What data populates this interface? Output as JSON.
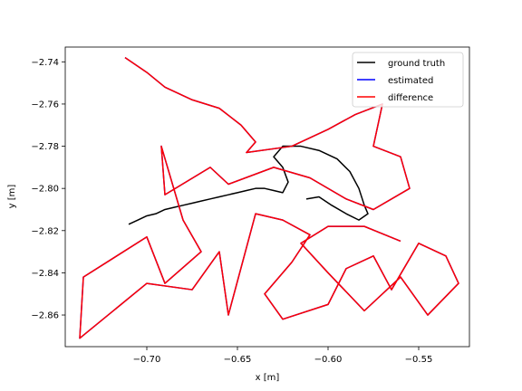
{
  "chart_data": {
    "type": "line",
    "xlabel": "x [m]",
    "ylabel": "y [m]",
    "xlim": [
      -0.745,
      -0.522
    ],
    "ylim": [
      -2.875,
      -2.733
    ],
    "x_ticks": [
      -0.7,
      -0.65,
      -0.6,
      -0.55
    ],
    "x_tick_labels": [
      "−0.70",
      "−0.65",
      "−0.60",
      "−0.55"
    ],
    "y_ticks": [
      -2.74,
      -2.76,
      -2.78,
      -2.8,
      -2.82,
      -2.84,
      -2.86
    ],
    "y_tick_labels": [
      "−2.74",
      "−2.76",
      "−2.78",
      "−2.80",
      "−2.82",
      "−2.84",
      "−2.86"
    ],
    "grid": false,
    "legend_position": "upper right",
    "series": [
      {
        "name": "ground truth",
        "color": "#000000",
        "points": [
          [
            -0.71,
            -2.817
          ],
          [
            -0.705,
            -2.815
          ],
          [
            -0.7,
            -2.813
          ],
          [
            -0.695,
            -2.812
          ],
          [
            -0.69,
            -2.81
          ],
          [
            -0.685,
            -2.809
          ],
          [
            -0.68,
            -2.808
          ],
          [
            -0.675,
            -2.807
          ],
          [
            -0.67,
            -2.806
          ],
          [
            -0.665,
            -2.805
          ],
          [
            -0.66,
            -2.804
          ],
          [
            -0.655,
            -2.803
          ],
          [
            -0.65,
            -2.802
          ],
          [
            -0.645,
            -2.801
          ],
          [
            -0.64,
            -2.8
          ],
          [
            -0.635,
            -2.8
          ],
          [
            -0.63,
            -2.801
          ],
          [
            -0.625,
            -2.802
          ],
          [
            -0.622,
            -2.797
          ],
          [
            -0.625,
            -2.79
          ],
          [
            -0.63,
            -2.785
          ],
          [
            -0.625,
            -2.78
          ],
          [
            -0.615,
            -2.78
          ],
          [
            -0.605,
            -2.782
          ],
          [
            -0.595,
            -2.786
          ],
          [
            -0.588,
            -2.792
          ],
          [
            -0.583,
            -2.8
          ],
          [
            -0.58,
            -2.808
          ],
          [
            -0.578,
            -2.812
          ],
          [
            -0.583,
            -2.815
          ],
          [
            -0.59,
            -2.812
          ],
          [
            -0.598,
            -2.808
          ],
          [
            -0.605,
            -2.804
          ],
          [
            -0.612,
            -2.805
          ]
        ]
      },
      {
        "name": "estimated",
        "color": "#0000ff",
        "points": [
          [
            -0.712,
            -2.738
          ],
          [
            -0.7,
            -2.745
          ],
          [
            -0.69,
            -2.752
          ],
          [
            -0.675,
            -2.758
          ],
          [
            -0.66,
            -2.762
          ],
          [
            -0.648,
            -2.77
          ],
          [
            -0.64,
            -2.778
          ],
          [
            -0.645,
            -2.783
          ],
          [
            -0.62,
            -2.78
          ],
          [
            -0.6,
            -2.772
          ],
          [
            -0.585,
            -2.765
          ],
          [
            -0.57,
            -2.76
          ],
          [
            -0.575,
            -2.78
          ],
          [
            -0.56,
            -2.785
          ],
          [
            -0.555,
            -2.8
          ],
          [
            -0.575,
            -2.81
          ],
          [
            -0.59,
            -2.805
          ],
          [
            -0.61,
            -2.795
          ],
          [
            -0.63,
            -2.79
          ],
          [
            -0.655,
            -2.798
          ],
          [
            -0.665,
            -2.79
          ],
          [
            -0.69,
            -2.803
          ],
          [
            -0.692,
            -2.78
          ],
          [
            -0.68,
            -2.815
          ],
          [
            -0.67,
            -2.83
          ],
          [
            -0.69,
            -2.845
          ],
          [
            -0.7,
            -2.823
          ],
          [
            -0.735,
            -2.842
          ],
          [
            -0.737,
            -2.871
          ],
          [
            -0.7,
            -2.845
          ],
          [
            -0.675,
            -2.848
          ],
          [
            -0.66,
            -2.83
          ],
          [
            -0.655,
            -2.86
          ],
          [
            -0.64,
            -2.812
          ],
          [
            -0.625,
            -2.815
          ],
          [
            -0.61,
            -2.822
          ],
          [
            -0.62,
            -2.835
          ],
          [
            -0.635,
            -2.85
          ],
          [
            -0.625,
            -2.862
          ],
          [
            -0.6,
            -2.855
          ],
          [
            -0.59,
            -2.838
          ],
          [
            -0.575,
            -2.832
          ],
          [
            -0.565,
            -2.848
          ],
          [
            -0.55,
            -2.826
          ],
          [
            -0.535,
            -2.832
          ],
          [
            -0.528,
            -2.845
          ],
          [
            -0.545,
            -2.86
          ],
          [
            -0.56,
            -2.842
          ],
          [
            -0.58,
            -2.858
          ],
          [
            -0.6,
            -2.84
          ],
          [
            -0.615,
            -2.826
          ],
          [
            -0.6,
            -2.818
          ],
          [
            -0.58,
            -2.818
          ],
          [
            -0.56,
            -2.825
          ]
        ]
      },
      {
        "name": "difference",
        "color": "#ff0000",
        "points": [
          [
            -0.712,
            -2.738
          ],
          [
            -0.7,
            -2.745
          ],
          [
            -0.69,
            -2.752
          ],
          [
            -0.675,
            -2.758
          ],
          [
            -0.66,
            -2.762
          ],
          [
            -0.648,
            -2.77
          ],
          [
            -0.64,
            -2.778
          ],
          [
            -0.645,
            -2.783
          ],
          [
            -0.62,
            -2.78
          ],
          [
            -0.6,
            -2.772
          ],
          [
            -0.585,
            -2.765
          ],
          [
            -0.57,
            -2.76
          ],
          [
            -0.575,
            -2.78
          ],
          [
            -0.56,
            -2.785
          ],
          [
            -0.555,
            -2.8
          ],
          [
            -0.575,
            -2.81
          ],
          [
            -0.59,
            -2.805
          ],
          [
            -0.61,
            -2.795
          ],
          [
            -0.63,
            -2.79
          ],
          [
            -0.655,
            -2.798
          ],
          [
            -0.665,
            -2.79
          ],
          [
            -0.69,
            -2.803
          ],
          [
            -0.692,
            -2.78
          ],
          [
            -0.68,
            -2.815
          ],
          [
            -0.67,
            -2.83
          ],
          [
            -0.69,
            -2.845
          ],
          [
            -0.7,
            -2.823
          ],
          [
            -0.735,
            -2.842
          ],
          [
            -0.737,
            -2.871
          ],
          [
            -0.7,
            -2.845
          ],
          [
            -0.675,
            -2.848
          ],
          [
            -0.66,
            -2.83
          ],
          [
            -0.655,
            -2.86
          ],
          [
            -0.64,
            -2.812
          ],
          [
            -0.625,
            -2.815
          ],
          [
            -0.61,
            -2.822
          ],
          [
            -0.62,
            -2.835
          ],
          [
            -0.635,
            -2.85
          ],
          [
            -0.625,
            -2.862
          ],
          [
            -0.6,
            -2.855
          ],
          [
            -0.59,
            -2.838
          ],
          [
            -0.575,
            -2.832
          ],
          [
            -0.565,
            -2.848
          ],
          [
            -0.55,
            -2.826
          ],
          [
            -0.535,
            -2.832
          ],
          [
            -0.528,
            -2.845
          ],
          [
            -0.545,
            -2.86
          ],
          [
            -0.56,
            -2.842
          ],
          [
            -0.58,
            -2.858
          ],
          [
            -0.6,
            -2.84
          ],
          [
            -0.615,
            -2.826
          ],
          [
            -0.6,
            -2.818
          ],
          [
            -0.58,
            -2.818
          ],
          [
            -0.56,
            -2.825
          ]
        ]
      }
    ]
  }
}
